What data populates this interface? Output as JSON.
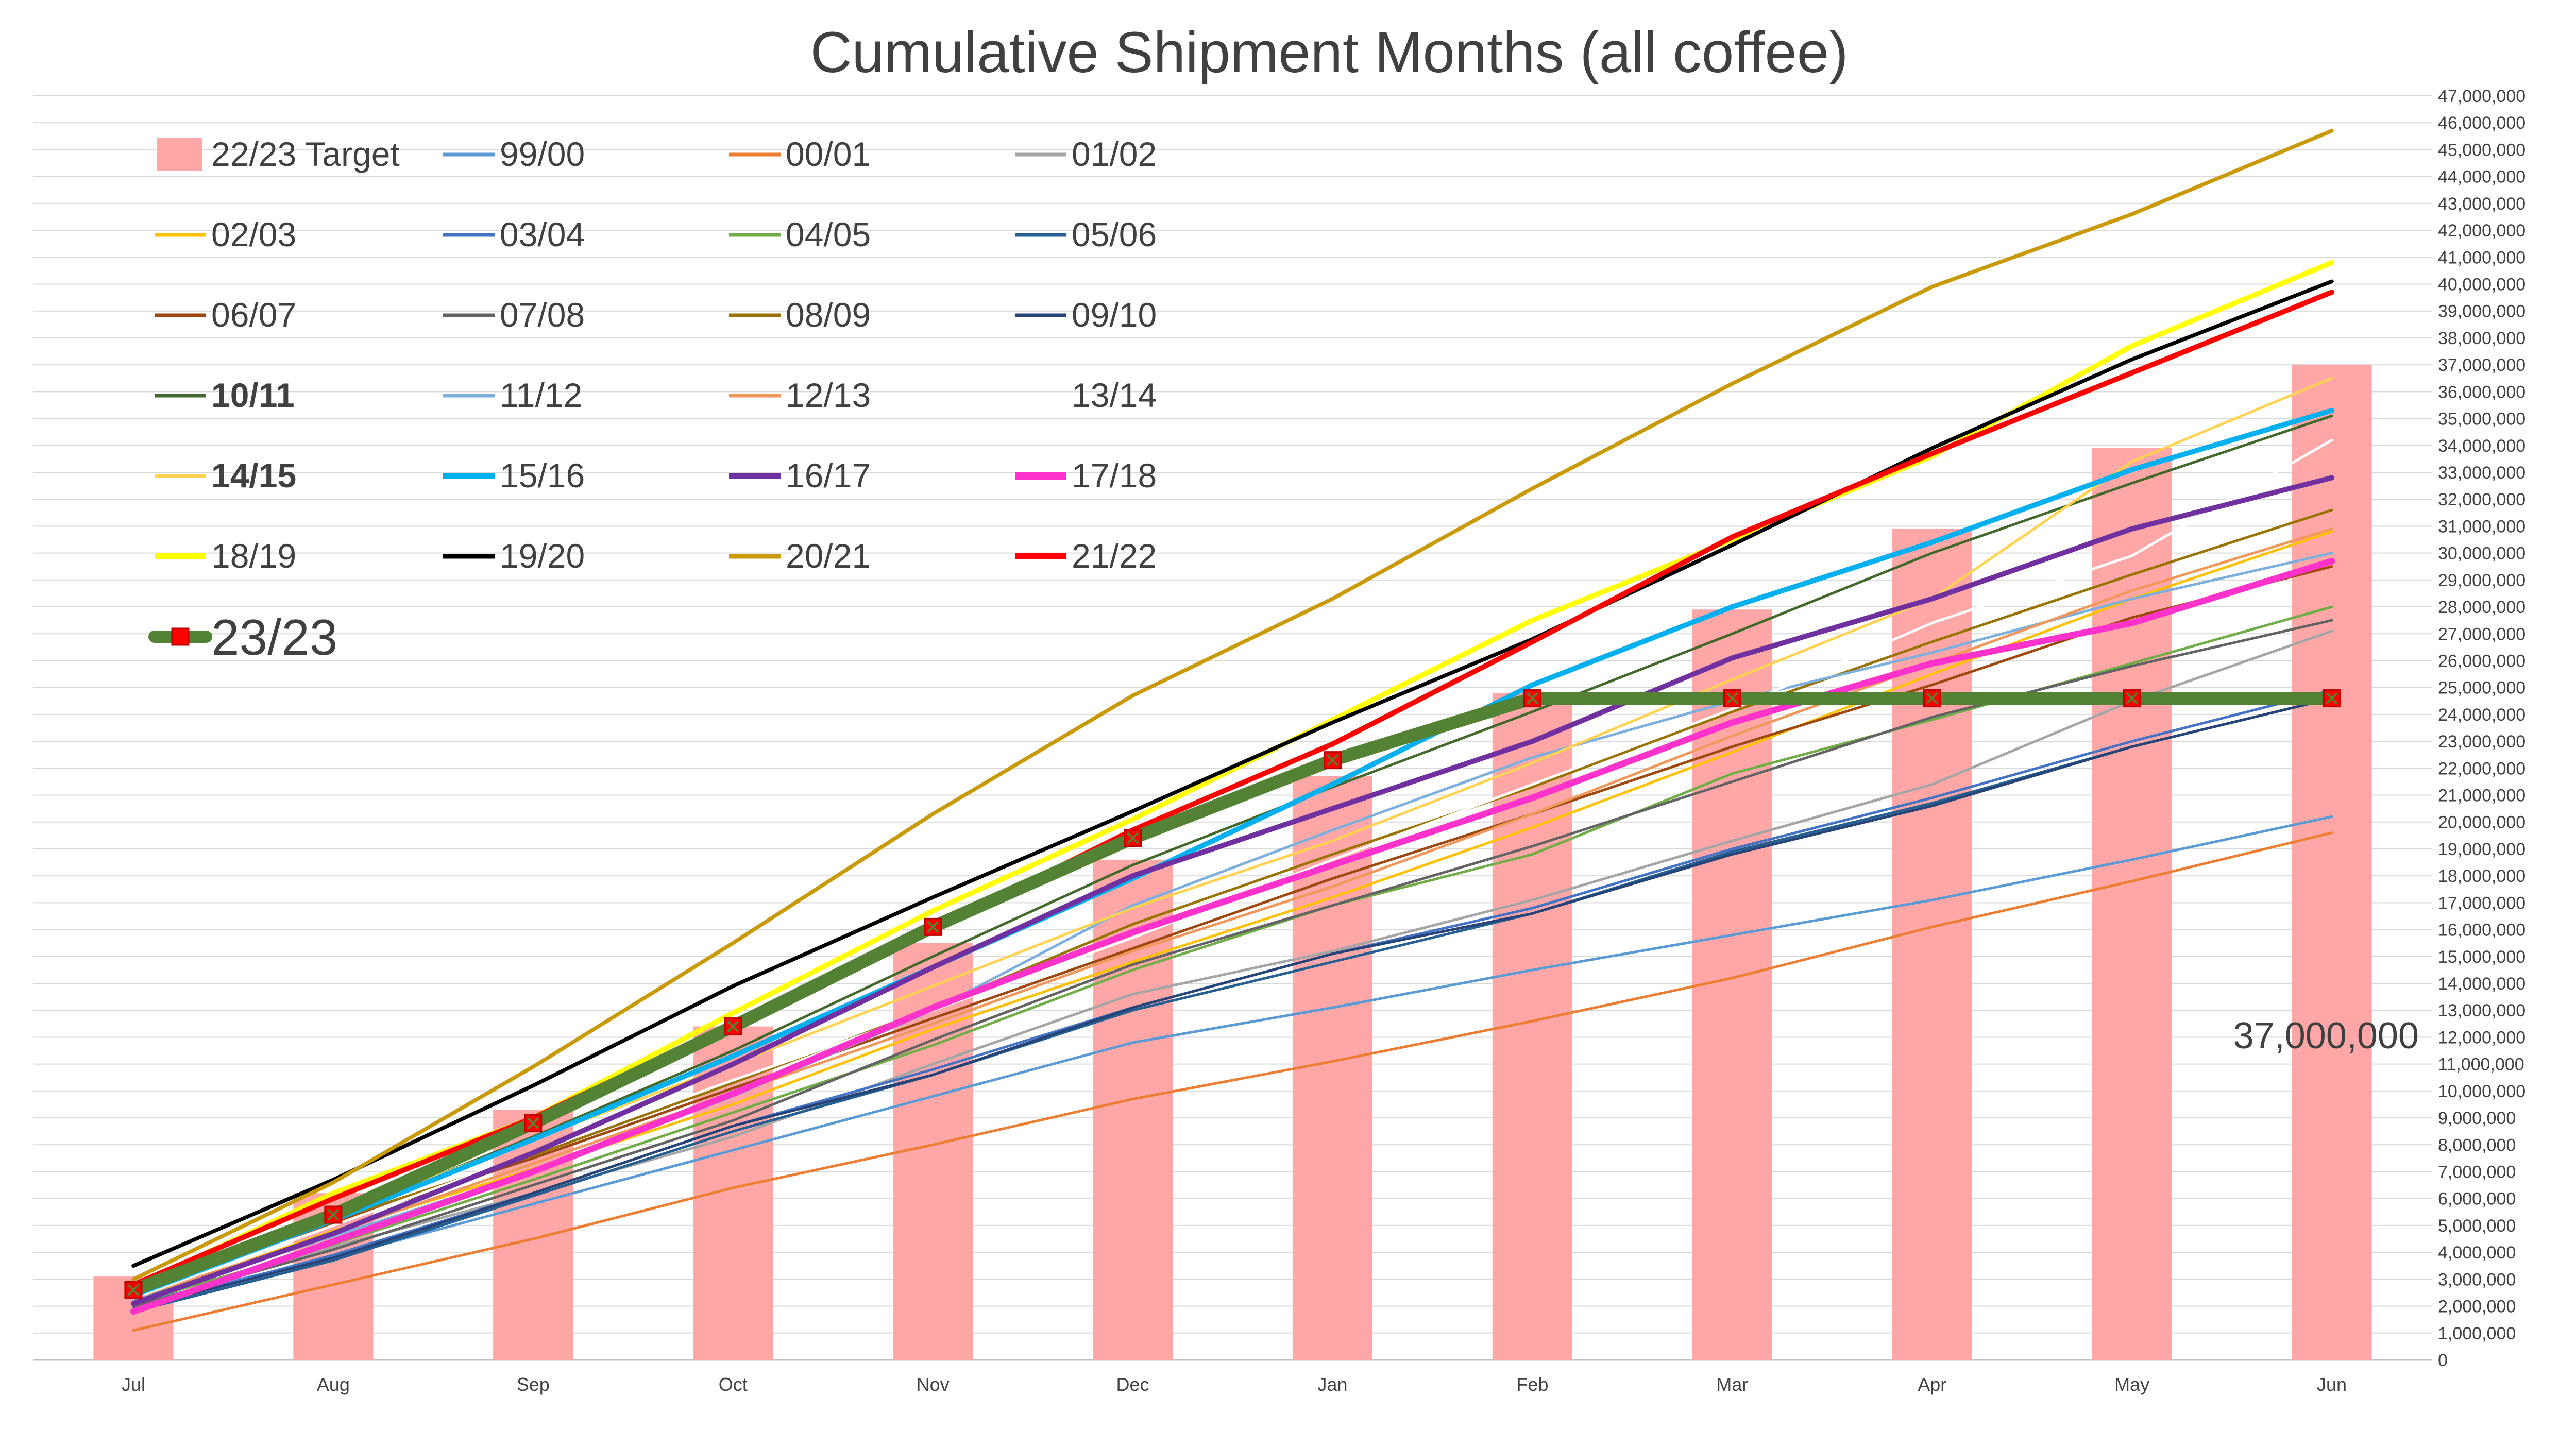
{
  "chart_data": {
    "type": "line",
    "title": "Cumulative Shipment Months (all coffee)",
    "categories": [
      "Jul",
      "Aug",
      "Sep",
      "Oct",
      "Nov",
      "Dec",
      "Jan",
      "Feb",
      "Mar",
      "Apr",
      "May",
      "Jun"
    ],
    "ylim": [
      0,
      47000000
    ],
    "ytick_step": 1000000,
    "grid": true,
    "legend_position": "top-left",
    "annotation": "37,000,000",
    "bar_series": {
      "name": "22/23 Target",
      "color": "#FFA7A7",
      "values": [
        3100000,
        6200000,
        9300000,
        12400000,
        15500000,
        18600000,
        21700000,
        24800000,
        27900000,
        30900000,
        33900000,
        37000000
      ]
    },
    "series": [
      {
        "name": "99/00",
        "color": "#5B9BD5",
        "width": 2,
        "values": [
          2100000,
          3800000,
          5800000,
          7800000,
          9800000,
          11800000,
          13100000,
          14500000,
          15800000,
          17100000,
          18600000,
          20200000
        ]
      },
      {
        "name": "00/01",
        "color": "#ED7D31",
        "width": 2,
        "values": [
          1100000,
          2800000,
          4500000,
          6400000,
          8000000,
          9700000,
          11100000,
          12600000,
          14200000,
          16100000,
          17800000,
          19600000
        ]
      },
      {
        "name": "01/02",
        "color": "#A5A5A5",
        "width": 2,
        "values": [
          1900000,
          4200000,
          6200000,
          8300000,
          11000000,
          13600000,
          15200000,
          17100000,
          19300000,
          21400000,
          24500000,
          27100000
        ]
      },
      {
        "name": "02/03",
        "color": "#FFC000",
        "width": 2,
        "values": [
          2200000,
          4800000,
          7100000,
          9500000,
          12300000,
          14800000,
          17200000,
          19800000,
          22600000,
          25500000,
          28300000,
          30800000
        ]
      },
      {
        "name": "03/04",
        "color": "#4472C4",
        "width": 2,
        "values": [
          1900000,
          3900000,
          6200000,
          8700000,
          10800000,
          13100000,
          15100000,
          16800000,
          19000000,
          20900000,
          23000000,
          24900000
        ]
      },
      {
        "name": "04/05",
        "color": "#70AD47",
        "width": 2,
        "values": [
          2100000,
          4300000,
          6700000,
          9200000,
          11700000,
          14500000,
          16900000,
          18800000,
          21800000,
          23800000,
          25900000,
          28000000
        ]
      },
      {
        "name": "05/06",
        "color": "#255E91",
        "width": 2,
        "values": [
          1800000,
          3700000,
          6100000,
          8500000,
          10600000,
          13000000,
          14800000,
          16600000,
          18900000,
          20700000,
          22800000,
          24600000
        ]
      },
      {
        "name": "06/07",
        "color": "#9E480E",
        "width": 2,
        "values": [
          2500000,
          5100000,
          7500000,
          10100000,
          12700000,
          15300000,
          17900000,
          20300000,
          22800000,
          25100000,
          27600000,
          29500000
        ]
      },
      {
        "name": "07/08",
        "color": "#636363",
        "width": 2,
        "values": [
          2000000,
          4100000,
          6500000,
          8900000,
          11900000,
          14700000,
          16900000,
          19100000,
          21500000,
          23900000,
          25800000,
          27500000
        ]
      },
      {
        "name": "08/09",
        "color": "#997300",
        "width": 2,
        "values": [
          2500000,
          5200000,
          7600000,
          10300000,
          13100000,
          16200000,
          18800000,
          21300000,
          24100000,
          26700000,
          29200000,
          31600000
        ]
      },
      {
        "name": "09/10",
        "color": "#264478",
        "width": 2,
        "values": [
          1900000,
          3800000,
          6200000,
          8700000,
          10600000,
          13100000,
          15100000,
          16600000,
          18800000,
          20600000,
          22800000,
          24600000
        ]
      },
      {
        "name": "10/11",
        "color": "#43682B",
        "width": 2,
        "bold": true,
        "values": [
          2500000,
          5300000,
          8300000,
          11500000,
          15000000,
          18400000,
          21300000,
          24100000,
          27000000,
          30000000,
          32600000,
          35100000
        ]
      },
      {
        "name": "11/12",
        "color": "#7CAFDD",
        "width": 2,
        "values": [
          2200000,
          4600000,
          7000000,
          9800000,
          13000000,
          16900000,
          19700000,
          22400000,
          24500000,
          26300000,
          28300000,
          30000000
        ]
      },
      {
        "name": "12/13",
        "color": "#F1975A",
        "width": 2,
        "values": [
          2300000,
          4700000,
          7300000,
          9900000,
          12500000,
          15200000,
          17600000,
          20300000,
          23200000,
          25900000,
          28600000,
          30900000
        ]
      },
      {
        "name": "13/14",
        "color": "#FFFFFF",
        "width": 2,
        "values": [
          2300000,
          5000000,
          7700000,
          10400000,
          13000000,
          15700000,
          18600000,
          21400000,
          24200000,
          27400000,
          29900000,
          34200000
        ]
      },
      {
        "name": "14/15",
        "color": "#FFD34F",
        "width": 2,
        "bold": true,
        "values": [
          2700000,
          5400000,
          8200000,
          11000000,
          13900000,
          16800000,
          19300000,
          22200000,
          25300000,
          28300000,
          33400000,
          36500000
        ]
      },
      {
        "name": "15/16",
        "color": "#00B0F0",
        "width": 4,
        "values": [
          2400000,
          5200000,
          8200000,
          11300000,
          14600000,
          17900000,
          21400000,
          25100000,
          28000000,
          30400000,
          33100000,
          35300000
        ]
      },
      {
        "name": "16/17",
        "color": "#7030A0",
        "width": 4,
        "values": [
          2100000,
          4700000,
          7700000,
          11000000,
          14600000,
          18000000,
          20500000,
          23000000,
          26100000,
          28300000,
          30900000,
          32800000
        ]
      },
      {
        "name": "17/18",
        "color": "#FF33CC",
        "width": 5,
        "values": [
          1800000,
          4400000,
          7000000,
          9900000,
          13100000,
          15900000,
          18400000,
          20900000,
          23700000,
          25900000,
          27400000,
          29700000
        ]
      },
      {
        "name": "18/19",
        "color": "#FFFF00",
        "width": 4,
        "values": [
          2700000,
          6200000,
          9000000,
          12900000,
          16700000,
          20100000,
          23800000,
          27500000,
          30500000,
          33600000,
          37700000,
          40800000
        ]
      },
      {
        "name": "19/20",
        "color": "#000000",
        "width": 3,
        "values": [
          3500000,
          6700000,
          10200000,
          13900000,
          17200000,
          20400000,
          23700000,
          26800000,
          30300000,
          33900000,
          37200000,
          40100000
        ]
      },
      {
        "name": "20/21",
        "color": "#C99A06",
        "width": 3,
        "values": [
          3000000,
          6600000,
          10900000,
          15500000,
          20300000,
          24700000,
          28300000,
          32400000,
          36300000,
          39900000,
          42600000,
          45700000
        ]
      },
      {
        "name": "21/22",
        "color": "#FF0000",
        "width": 4,
        "values": [
          2800000,
          6000000,
          9000000,
          12500000,
          16000000,
          19700000,
          22900000,
          26700000,
          30600000,
          33700000,
          36700000,
          39700000
        ]
      },
      {
        "name": "23/23",
        "color": "#548235",
        "width": 10,
        "marker": true,
        "values": [
          2600000,
          5400000,
          8800000,
          12400000,
          16100000,
          19400000,
          22300000,
          24600000,
          24600000,
          24600000,
          24600000,
          24600000
        ]
      }
    ]
  }
}
